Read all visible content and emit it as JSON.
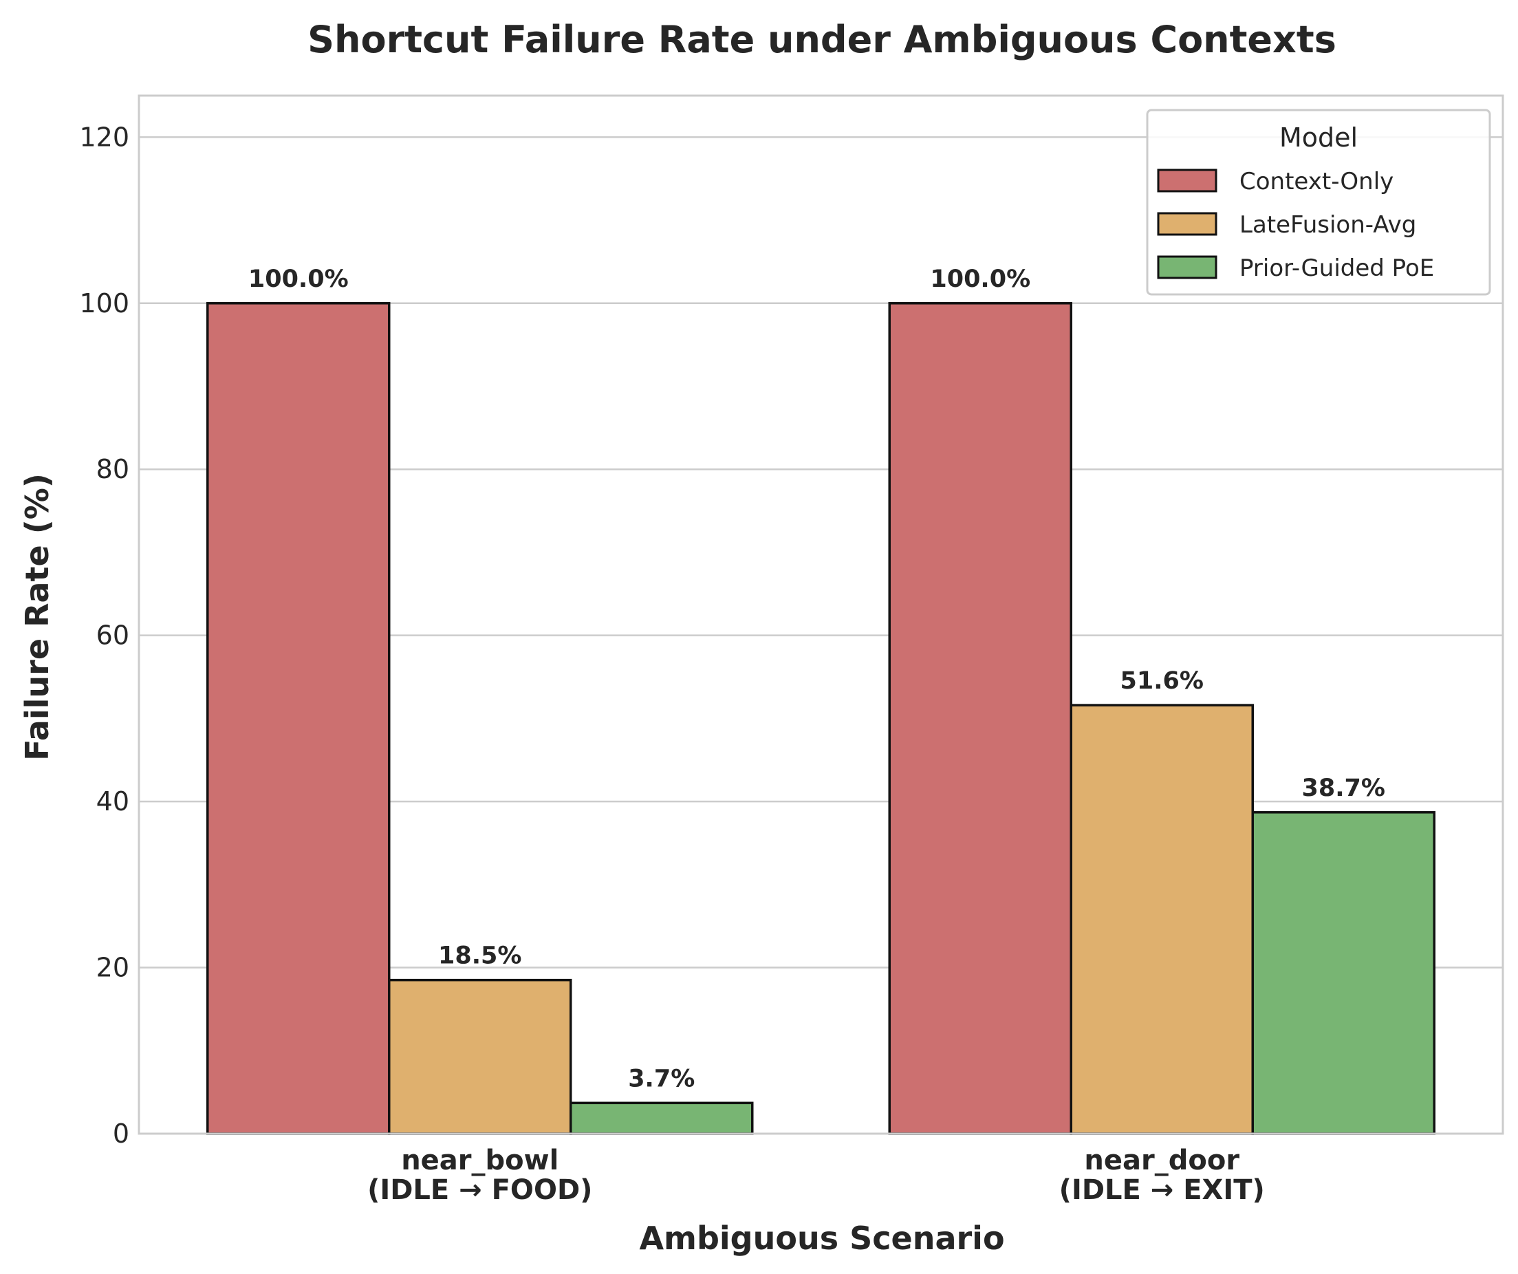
{
  "chart_data": {
    "type": "bar",
    "title": "Shortcut Failure Rate under Ambiguous Contexts",
    "xlabel": "Ambiguous Scenario",
    "ylabel": "Failure Rate (%)",
    "ylim": [
      0,
      125
    ],
    "yticks": [
      0,
      20,
      40,
      60,
      80,
      100,
      120
    ],
    "grid": true,
    "categories": [
      [
        "near_bowl",
        "(IDLE → FOOD)"
      ],
      [
        "near_door",
        "(IDLE → EXIT)"
      ]
    ],
    "series": [
      {
        "name": "Context-Only",
        "color": "#c44e52",
        "values": [
          100.0,
          100.0
        ],
        "labels": [
          "100.0%",
          "100.0%"
        ]
      },
      {
        "name": "LateFusion-Avg",
        "color": "#dd8452",
        "values": [
          18.5,
          51.6
        ],
        "labels": [
          "18.5%",
          "51.6%"
        ]
      },
      {
        "name": "Prior-Guided PoE",
        "color": "#55a868",
        "values": [
          3.7,
          38.7
        ],
        "labels": [
          "3.7%",
          "38.7%"
        ]
      }
    ],
    "legend": {
      "title": "Model",
      "placement": "top-right"
    },
    "bar_fill_colors": [
      "#cc7070",
      "#dfb06e",
      "#78b573"
    ]
  }
}
